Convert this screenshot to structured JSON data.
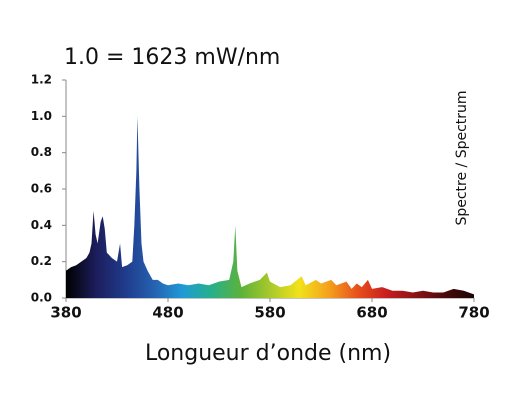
{
  "chart_data": {
    "type": "area",
    "title": "1.0 = 1623 mW/nm",
    "x_label": "Longueur d’onde (nm)",
    "side_label": "Spectre / Spectrum",
    "x": [
      380,
      385,
      390,
      395,
      400,
      403,
      405,
      407,
      409,
      411,
      414,
      416,
      418,
      420,
      425,
      430,
      433,
      435,
      440,
      445,
      447,
      449,
      450,
      452,
      454,
      456,
      460,
      465,
      470,
      475,
      480,
      490,
      500,
      510,
      520,
      530,
      540,
      544,
      546,
      548,
      552,
      560,
      570,
      577,
      580,
      590,
      600,
      611,
      615,
      625,
      630,
      640,
      645,
      655,
      660,
      665,
      670,
      676,
      680,
      690,
      700,
      710,
      720,
      730,
      740,
      750,
      760,
      770,
      780
    ],
    "values": [
      0.15,
      0.17,
      0.18,
      0.2,
      0.22,
      0.25,
      0.3,
      0.48,
      0.35,
      0.3,
      0.42,
      0.45,
      0.38,
      0.25,
      0.22,
      0.2,
      0.3,
      0.17,
      0.18,
      0.2,
      0.4,
      0.7,
      1.0,
      0.6,
      0.3,
      0.2,
      0.15,
      0.1,
      0.1,
      0.08,
      0.07,
      0.08,
      0.07,
      0.08,
      0.07,
      0.09,
      0.1,
      0.2,
      0.4,
      0.15,
      0.06,
      0.08,
      0.1,
      0.14,
      0.09,
      0.06,
      0.07,
      0.12,
      0.07,
      0.1,
      0.08,
      0.1,
      0.07,
      0.09,
      0.05,
      0.08,
      0.06,
      0.1,
      0.05,
      0.06,
      0.04,
      0.04,
      0.03,
      0.04,
      0.03,
      0.03,
      0.05,
      0.04,
      0.02
    ],
    "colors": [
      "#000000",
      "#1c1c5a",
      "#203a8a",
      "#2660b0",
      "#1f9ad6",
      "#27b08a",
      "#5cb23a",
      "#a8c92a",
      "#f2e21a",
      "#f4a21c",
      "#e8501c",
      "#c81e1e",
      "#8a1414",
      "#4a0a0a",
      "#1a0505"
    ],
    "xlim": [
      380,
      780
    ],
    "xticks": [
      380,
      480,
      580,
      680,
      780
    ],
    "ylim": [
      0,
      1.2
    ],
    "yticks": [
      {
        "value": 0,
        "label": "0.0"
      },
      0.2,
      0.4,
      0.6,
      0.8,
      {
        "value": 1,
        "label": "1.0"
      },
      1.2
    ]
  }
}
